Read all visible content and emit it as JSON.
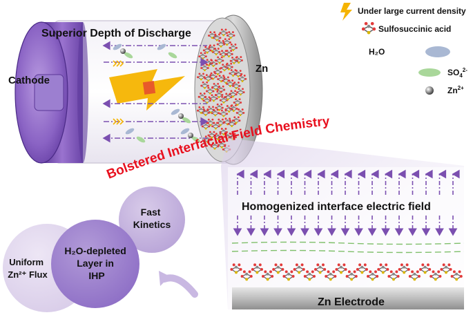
{
  "title_top": "Superior Depth of Discharge",
  "cathode_label": "Cathode",
  "zn_label": "Zn",
  "legend": {
    "current": "Under large current density",
    "acid": "Sulfosuccinic acid",
    "water": "H₂O",
    "sulfate_base": "SO",
    "sulfate_sub": "4",
    "sulfate_sup": "2-",
    "zinc_base": "Zn",
    "zinc_sup": "2+"
  },
  "arc_title": "Bolstered Interfacial Field Chemistry",
  "field_label": "Homogenized interface electric field",
  "electrode_label": "Zn Electrode",
  "circles": {
    "fast": [
      "Fast",
      "Kinetics"
    ],
    "h2o": [
      "H₂O-depleted",
      "Layer in",
      "IHP"
    ],
    "uniform_line1": "Uniform",
    "uniform_line2": "Zn²⁺ Flux"
  },
  "colors": {
    "purple": "#7b4fb0",
    "dark_purple": "#4a2a86",
    "red_title": "#e8101e",
    "lightning": "#f5b400",
    "water": "#a9b8d3",
    "sulfate": "#a9d79a"
  }
}
